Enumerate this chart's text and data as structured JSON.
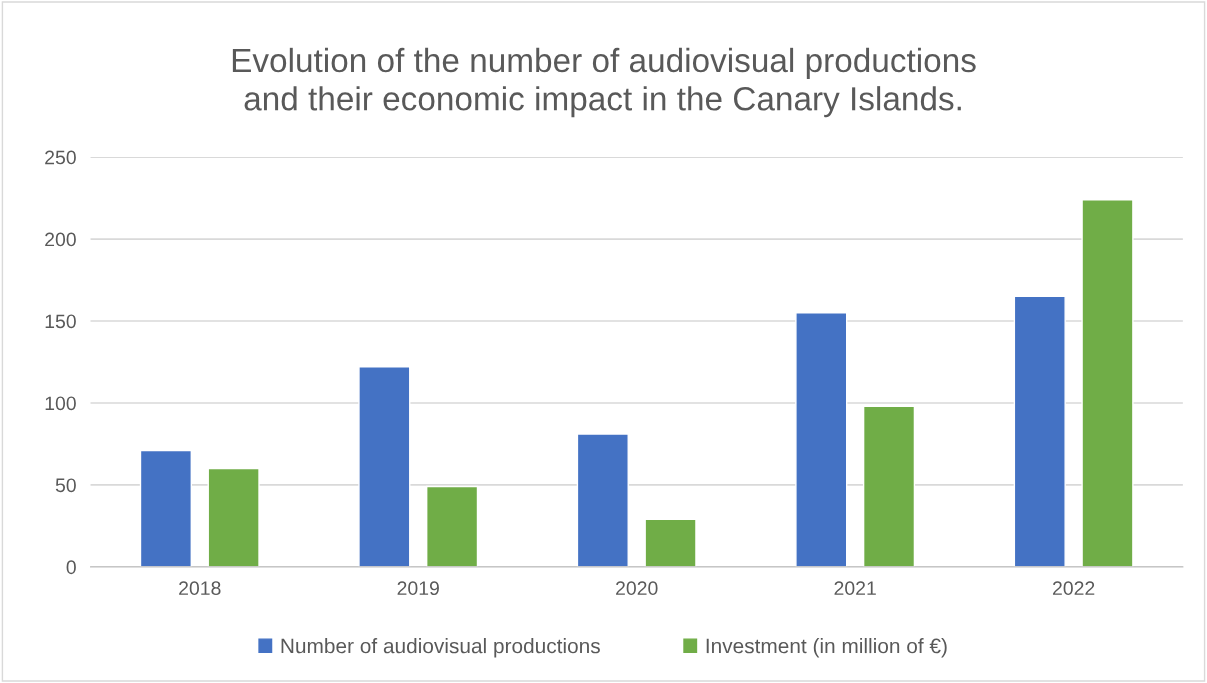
{
  "chart_data": {
    "type": "bar",
    "title": "Evolution of the number of audiovisual productions\nand their economic impact in the Canary Islands.",
    "categories": [
      "2018",
      "2019",
      "2020",
      "2021",
      "2022"
    ],
    "series": [
      {
        "name": "Number of audiovisual productions",
        "color": "#4472c4",
        "values": [
          71,
          122,
          81,
          155,
          165
        ]
      },
      {
        "name": "Investment (in million of €)",
        "color": "#70ad47",
        "values": [
          60,
          49,
          29,
          98,
          224
        ]
      }
    ],
    "ylim": [
      0,
      250
    ],
    "yticks": [
      0,
      50,
      100,
      150,
      200,
      250
    ],
    "grid": "y",
    "legend": "bottom"
  }
}
